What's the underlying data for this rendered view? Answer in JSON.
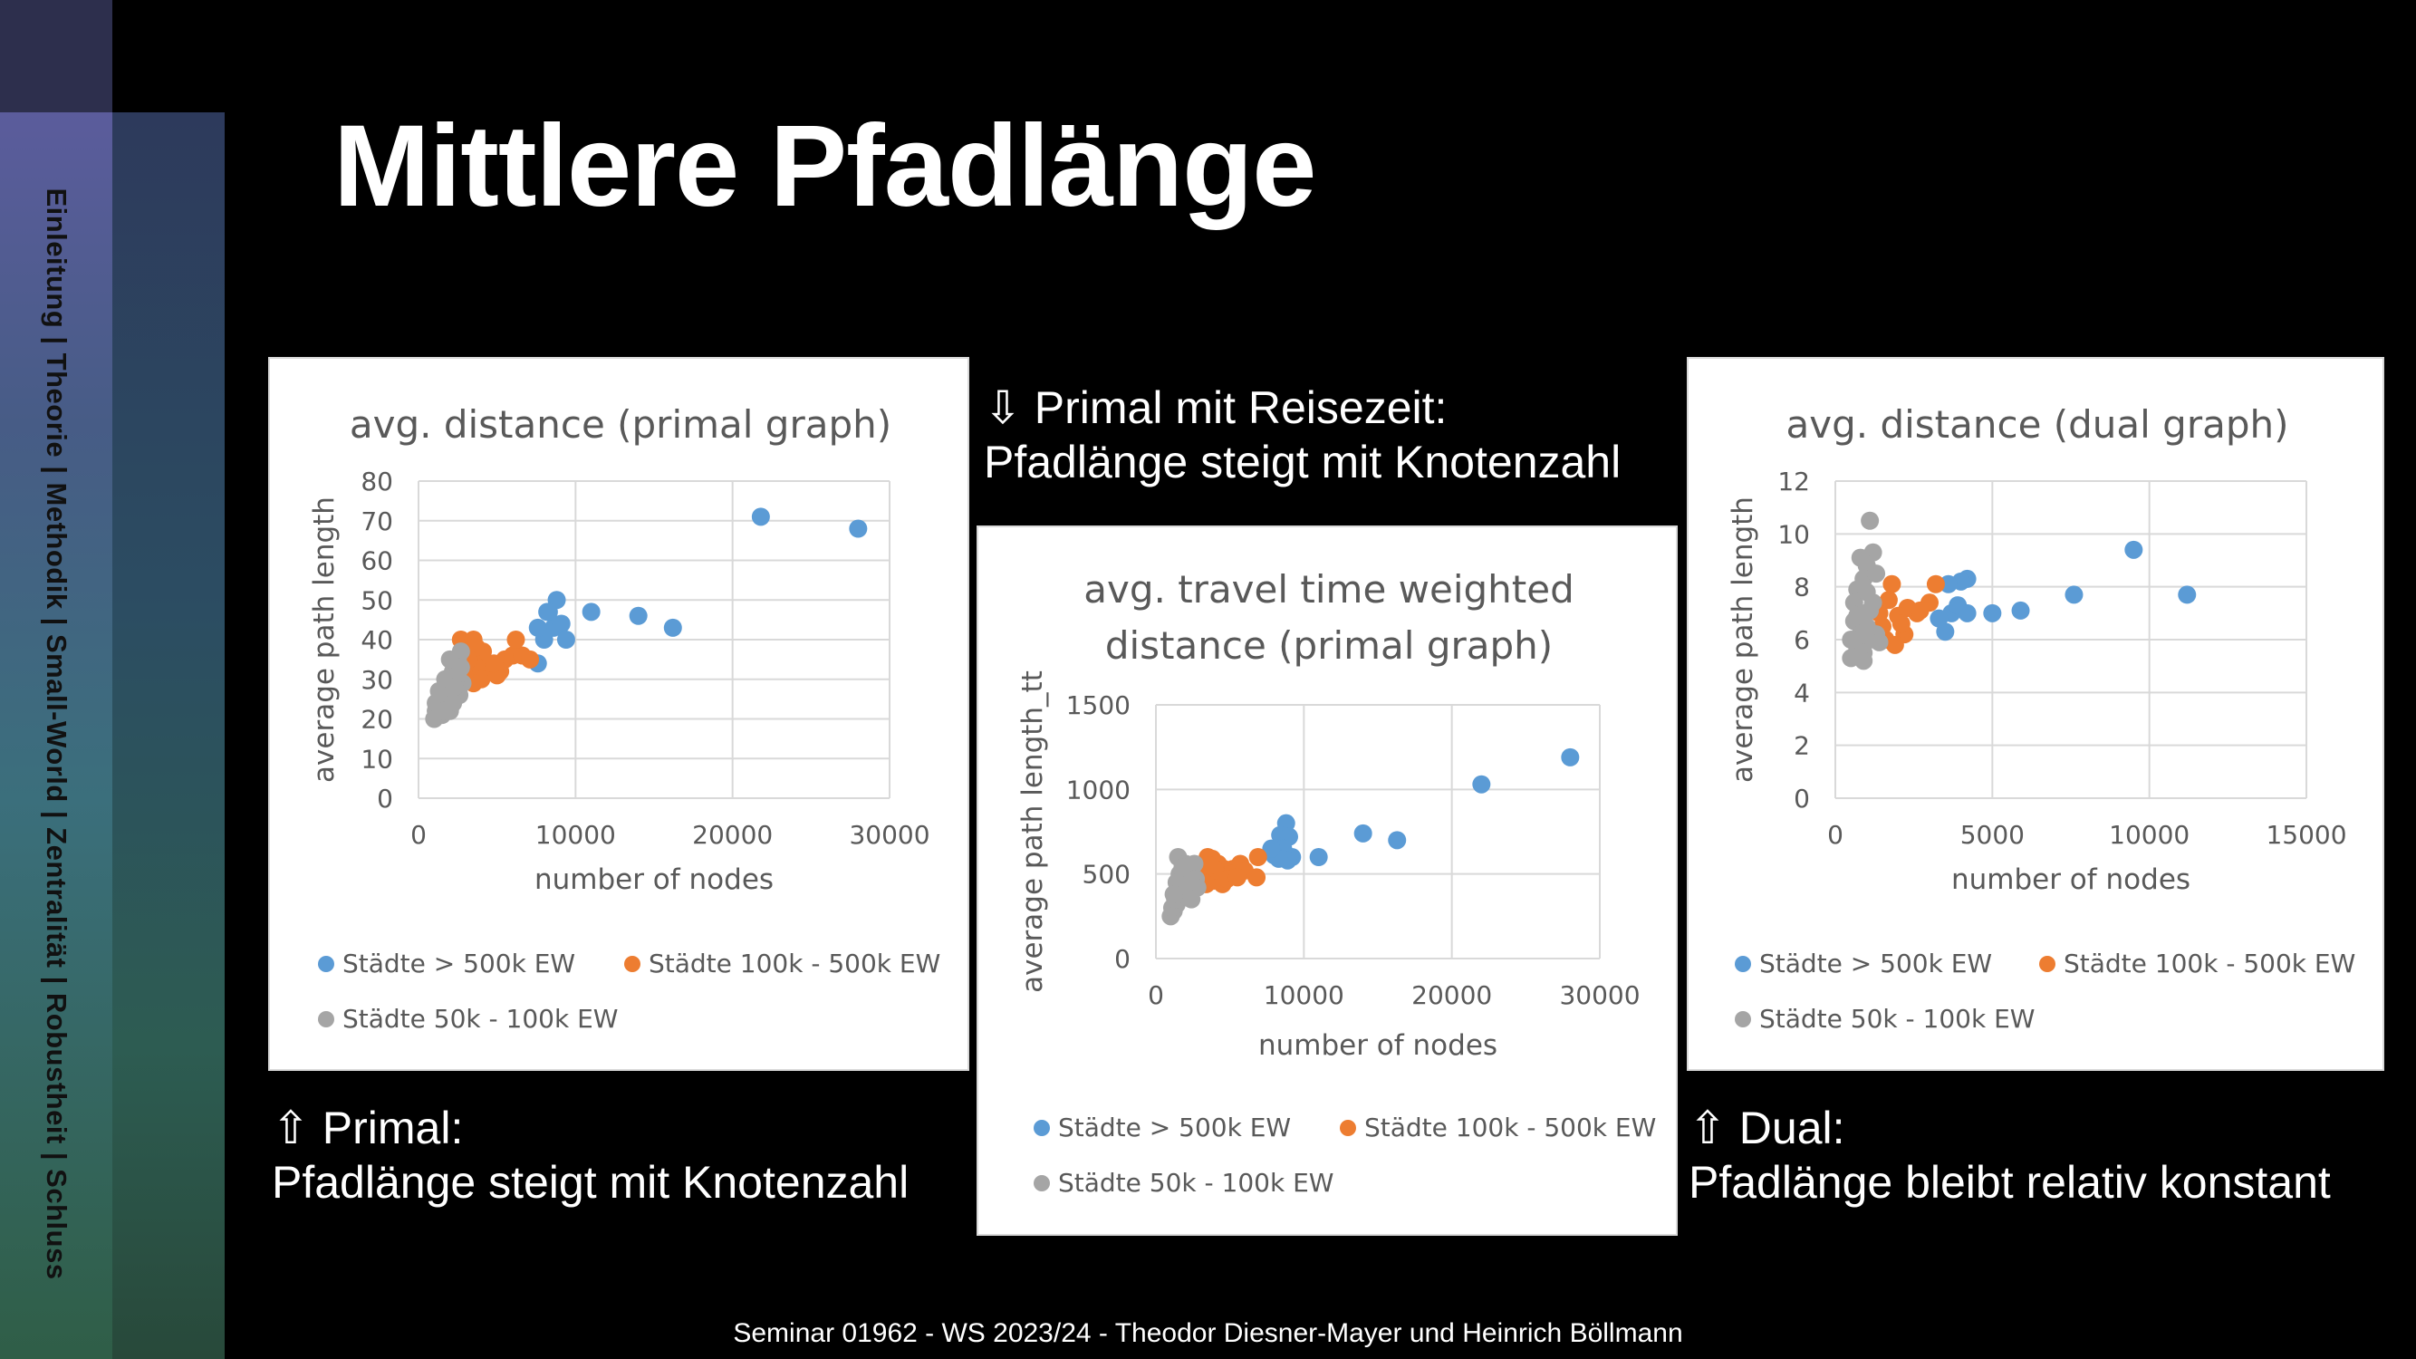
{
  "sidebar": {
    "nav": "Einleitung | Theorie | Methodik | Small-World | Zentralität | Robustheit | Schluss"
  },
  "slide": {
    "title": "Mittlere Pfadlänge",
    "caption_primal_title": "⇧ Primal:",
    "caption_primal_text": "Pfadlänge steigt mit Knotenzahl",
    "caption_middle_title": "⇩ Primal mit Reisezeit:",
    "caption_middle_text": "Pfadlänge steigt mit Knotenzahl",
    "caption_dual_title": "⇧ Dual:",
    "caption_dual_text": "Pfadlänge bleibt relativ konstant",
    "footer": "Seminar 01962 - WS 2023/24 - Theodor Diesner-Mayer und Heinrich Böllmann"
  },
  "colors": {
    "blue": "#5b9bd5",
    "orange": "#ed7d31",
    "gray": "#a5a5a5"
  },
  "chart_data": [
    {
      "type": "scatter",
      "title": "avg. distance (primal graph)",
      "xlabel": "number of nodes",
      "ylabel": "average path length",
      "xlim": [
        0,
        30000
      ],
      "ylim": [
        0,
        80
      ],
      "xticks": [
        0,
        10000,
        20000,
        30000
      ],
      "yticks": [
        0,
        10,
        20,
        30,
        40,
        50,
        60,
        70,
        80
      ],
      "grid": true,
      "legend": "bottom",
      "series": [
        {
          "name": "Städte > 500k EW",
          "color": "#5b9bd5",
          "points": [
            [
              21800,
              71
            ],
            [
              28000,
              68
            ],
            [
              11000,
              47
            ],
            [
              14000,
              46
            ],
            [
              16200,
              43
            ],
            [
              8800,
              50
            ],
            [
              8300,
              47
            ],
            [
              8600,
              43
            ],
            [
              9100,
              44
            ],
            [
              9400,
              40
            ],
            [
              8000,
              40
            ],
            [
              7600,
              43
            ],
            [
              8200,
              47
            ],
            [
              7600,
              34
            ]
          ]
        },
        {
          "name": "Städte 100k - 500k EW",
          "color": "#ed7d31",
          "points": [
            [
              2700,
              40
            ],
            [
              3500,
              40
            ],
            [
              3700,
              38
            ],
            [
              4100,
              37
            ],
            [
              5500,
              35
            ],
            [
              6000,
              36
            ],
            [
              6600,
              36
            ],
            [
              7100,
              35
            ],
            [
              6200,
              40
            ],
            [
              3000,
              36
            ],
            [
              3300,
              34
            ],
            [
              3800,
              33
            ],
            [
              4500,
              33
            ],
            [
              5200,
              32
            ],
            [
              4000,
              30
            ],
            [
              3500,
              29
            ],
            [
              5000,
              31
            ],
            [
              2900,
              31
            ],
            [
              3600,
              38
            ],
            [
              4800,
              34
            ],
            [
              2600,
              33
            ],
            [
              3200,
              35
            ]
          ]
        },
        {
          "name": "Städte 50k - 100k EW",
          "color": "#a5a5a5",
          "points": [
            [
              1000,
              20
            ],
            [
              1100,
              22
            ],
            [
              1300,
              24
            ],
            [
              1500,
              26
            ],
            [
              1700,
              27
            ],
            [
              1900,
              29
            ],
            [
              2100,
              31
            ],
            [
              2300,
              33
            ],
            [
              2500,
              35
            ],
            [
              2700,
              37
            ],
            [
              1200,
              21
            ],
            [
              1400,
              23
            ],
            [
              1600,
              25
            ],
            [
              1800,
              28
            ],
            [
              2000,
              30
            ],
            [
              2200,
              32
            ],
            [
              2400,
              34
            ],
            [
              1500,
              21
            ],
            [
              2000,
              22
            ],
            [
              2600,
              26
            ],
            [
              2800,
              29
            ],
            [
              2200,
              24
            ],
            [
              1300,
              27
            ],
            [
              1700,
              30
            ],
            [
              2500,
              31
            ],
            [
              2000,
              35
            ],
            [
              1100,
              24
            ],
            [
              1600,
              22
            ],
            [
              2300,
              28
            ],
            [
              2700,
              33
            ]
          ]
        }
      ]
    },
    {
      "type": "scatter",
      "title_lines": [
        "avg. travel time weighted",
        "distance (primal graph)"
      ],
      "xlabel": "number of nodes",
      "ylabel": "average path length_tt",
      "xlim": [
        0,
        30000
      ],
      "ylim": [
        0,
        1500
      ],
      "xticks": [
        0,
        10000,
        20000,
        30000
      ],
      "yticks": [
        0,
        500,
        1000,
        1500
      ],
      "grid": true,
      "legend": "bottom",
      "series": [
        {
          "name": "Städte > 500k EW",
          "color": "#5b9bd5",
          "points": [
            [
              28000,
              1190
            ],
            [
              22000,
              1030
            ],
            [
              14000,
              740
            ],
            [
              16300,
              700
            ],
            [
              11000,
              600
            ],
            [
              9200,
              600
            ],
            [
              8800,
              800
            ],
            [
              8400,
              730
            ],
            [
              9000,
              720
            ],
            [
              8600,
              650
            ],
            [
              8000,
              610
            ],
            [
              8900,
              580
            ],
            [
              8300,
              590
            ],
            [
              7800,
              650
            ]
          ]
        },
        {
          "name": "Städte 100k - 500k EW",
          "color": "#ed7d31",
          "points": [
            [
              3500,
              600
            ],
            [
              3800,
              590
            ],
            [
              4200,
              560
            ],
            [
              4600,
              530
            ],
            [
              5200,
              530
            ],
            [
              5700,
              560
            ],
            [
              6000,
              520
            ],
            [
              6800,
              480
            ],
            [
              6900,
              600
            ],
            [
              3000,
              500
            ],
            [
              3300,
              480
            ],
            [
              3900,
              460
            ],
            [
              4500,
              440
            ],
            [
              5100,
              500
            ],
            [
              4000,
              520
            ],
            [
              3600,
              550
            ],
            [
              4800,
              470
            ],
            [
              2900,
              530
            ],
            [
              3400,
              440
            ],
            [
              5500,
              480
            ]
          ]
        },
        {
          "name": "Städte 50k - 100k EW",
          "color": "#a5a5a5",
          "points": [
            [
              1000,
              250
            ],
            [
              1200,
              280
            ],
            [
              1400,
              320
            ],
            [
              1600,
              360
            ],
            [
              1800,
              400
            ],
            [
              2000,
              440
            ],
            [
              2200,
              480
            ],
            [
              2400,
              520
            ],
            [
              2600,
              560
            ],
            [
              1500,
              600
            ],
            [
              1100,
              300
            ],
            [
              1300,
              350
            ],
            [
              1700,
              420
            ],
            [
              1900,
              380
            ],
            [
              2100,
              500
            ],
            [
              2300,
              410
            ],
            [
              2500,
              450
            ],
            [
              2700,
              470
            ],
            [
              1600,
              500
            ],
            [
              2000,
              560
            ],
            [
              1400,
              450
            ],
            [
              1800,
              540
            ],
            [
              2800,
              420
            ],
            [
              1200,
              380
            ],
            [
              2400,
              350
            ]
          ]
        }
      ]
    },
    {
      "type": "scatter",
      "title": "avg. distance (dual graph)",
      "xlabel": "number of nodes",
      "ylabel": "average path length",
      "xlim": [
        0,
        15000
      ],
      "ylim": [
        0,
        12
      ],
      "xticks": [
        0,
        5000,
        10000,
        15000
      ],
      "yticks": [
        0,
        2,
        4,
        6,
        8,
        10,
        12
      ],
      "grid": true,
      "legend": "bottom",
      "series": [
        {
          "name": "Städte > 500k EW",
          "color": "#5b9bd5",
          "points": [
            [
              9500,
              9.4
            ],
            [
              11200,
              7.7
            ],
            [
              7600,
              7.7
            ],
            [
              5900,
              7.1
            ],
            [
              5000,
              7.0
            ],
            [
              4200,
              8.3
            ],
            [
              4000,
              8.2
            ],
            [
              3600,
              8.1
            ],
            [
              3700,
              7.0
            ],
            [
              3900,
              7.3
            ],
            [
              4200,
              7.0
            ],
            [
              3500,
              6.3
            ],
            [
              3300,
              6.8
            ]
          ]
        },
        {
          "name": "Städte 100k - 500k EW",
          "color": "#ed7d31",
          "points": [
            [
              1800,
              8.1
            ],
            [
              3200,
              8.1
            ],
            [
              3000,
              7.4
            ],
            [
              2600,
              7.0
            ],
            [
              2300,
              7.2
            ],
            [
              1600,
              6.0
            ],
            [
              1500,
              6.5
            ],
            [
              2000,
              6.9
            ],
            [
              1700,
              7.5
            ],
            [
              2200,
              6.2
            ],
            [
              1900,
              5.8
            ],
            [
              2700,
              7.1
            ],
            [
              1400,
              7.0
            ],
            [
              2100,
              6.6
            ]
          ]
        },
        {
          "name": "Städte 50k - 100k EW",
          "color": "#a5a5a5",
          "points": [
            [
              1100,
              10.5
            ],
            [
              1200,
              9.3
            ],
            [
              800,
              9.1
            ],
            [
              1000,
              8.8
            ],
            [
              900,
              8.3
            ],
            [
              700,
              7.9
            ],
            [
              600,
              7.4
            ],
            [
              800,
              7.0
            ],
            [
              1000,
              6.5
            ],
            [
              1100,
              6.0
            ],
            [
              700,
              5.6
            ],
            [
              500,
              5.3
            ],
            [
              900,
              5.5
            ],
            [
              1300,
              6.2
            ],
            [
              1200,
              7.4
            ],
            [
              600,
              6.7
            ],
            [
              1000,
              7.8
            ],
            [
              1300,
              8.5
            ],
            [
              800,
              6.2
            ],
            [
              500,
              6.0
            ],
            [
              1100,
              7.1
            ],
            [
              1400,
              5.9
            ],
            [
              900,
              5.2
            ],
            [
              700,
              6.9
            ]
          ]
        }
      ]
    }
  ]
}
